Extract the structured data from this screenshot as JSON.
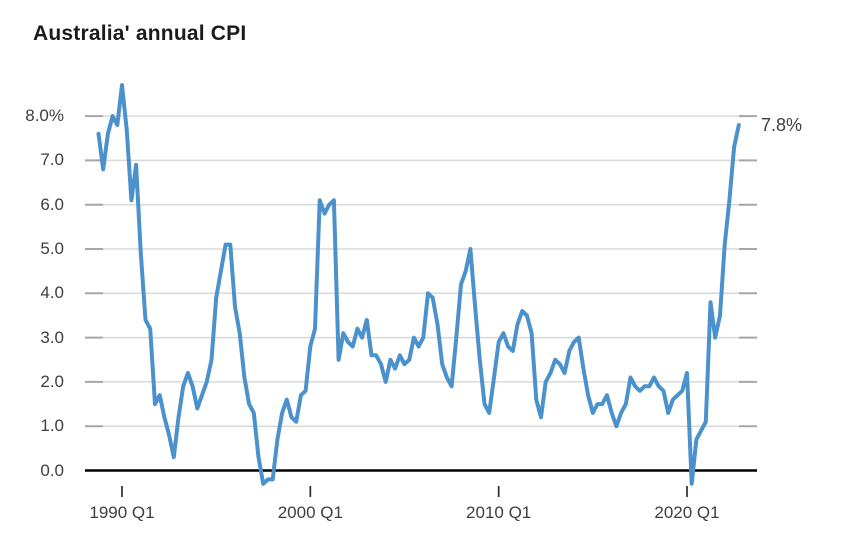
{
  "title": "Australia' annual CPI",
  "end_label": "7.8%",
  "colors": {
    "line": "#4b92cd",
    "grid": "#d9d9d9",
    "tick_stub": "#a6a6a6",
    "zero_line": "#000000",
    "x_tick": "#2b2b2b",
    "axis_text": "#3e3e3e",
    "title_text": "#1b1b1b"
  },
  "chart_data": {
    "type": "line",
    "title": "Australia' annual CPI",
    "unit": "% change year-on-year",
    "frequency": "quarterly",
    "start_quarter": "1988 Q4",
    "end_quarter": "2022 Q4",
    "grid": true,
    "ylim": [
      -0.5,
      8.8
    ],
    "y_ticks": [
      {
        "value": 8,
        "label": "8.0%"
      },
      {
        "value": 7,
        "label": "7.0"
      },
      {
        "value": 6,
        "label": "6.0"
      },
      {
        "value": 5,
        "label": "5.0"
      },
      {
        "value": 4,
        "label": "4.0"
      },
      {
        "value": 3,
        "label": "3.0"
      },
      {
        "value": 2,
        "label": "2.0"
      },
      {
        "value": 1,
        "label": "1.0"
      },
      {
        "value": 0,
        "label": "0.0"
      }
    ],
    "x_ticks": [
      {
        "index": 5,
        "label": "1990 Q1"
      },
      {
        "index": 45,
        "label": "2000 Q1"
      },
      {
        "index": 85,
        "label": "2010 Q1"
      },
      {
        "index": 125,
        "label": "2020 Q1"
      }
    ],
    "last_value_label": "7.8%",
    "values": [
      7.6,
      6.8,
      7.6,
      8.0,
      7.8,
      8.7,
      7.7,
      6.1,
      6.9,
      4.9,
      3.4,
      3.2,
      1.5,
      1.7,
      1.2,
      0.8,
      0.3,
      1.2,
      1.9,
      2.2,
      1.9,
      1.4,
      1.7,
      2.0,
      2.5,
      3.9,
      4.5,
      5.1,
      5.1,
      3.7,
      3.1,
      2.1,
      1.5,
      1.3,
      0.3,
      -0.3,
      -0.2,
      -0.2,
      0.7,
      1.3,
      1.6,
      1.2,
      1.1,
      1.7,
      1.8,
      2.8,
      3.2,
      6.1,
      5.8,
      6.0,
      6.1,
      2.5,
      3.1,
      2.9,
      2.8,
      3.2,
      3.0,
      3.4,
      2.6,
      2.6,
      2.4,
      2.0,
      2.5,
      2.3,
      2.6,
      2.4,
      2.5,
      3.0,
      2.8,
      3.0,
      4.0,
      3.9,
      3.3,
      2.4,
      2.1,
      1.9,
      3.0,
      4.2,
      4.5,
      5.0,
      3.7,
      2.5,
      1.5,
      1.3,
      2.1,
      2.9,
      3.1,
      2.8,
      2.7,
      3.3,
      3.6,
      3.5,
      3.1,
      1.6,
      1.2,
      2.0,
      2.2,
      2.5,
      2.4,
      2.2,
      2.7,
      2.9,
      3.0,
      2.3,
      1.7,
      1.3,
      1.5,
      1.5,
      1.7,
      1.3,
      1.0,
      1.3,
      1.5,
      2.1,
      1.9,
      1.8,
      1.9,
      1.9,
      2.1,
      1.9,
      1.8,
      1.3,
      1.6,
      1.7,
      1.8,
      2.2,
      -0.3,
      0.7,
      0.9,
      1.1,
      3.8,
      3.0,
      3.5,
      5.1,
      6.1,
      7.3,
      7.8
    ]
  }
}
